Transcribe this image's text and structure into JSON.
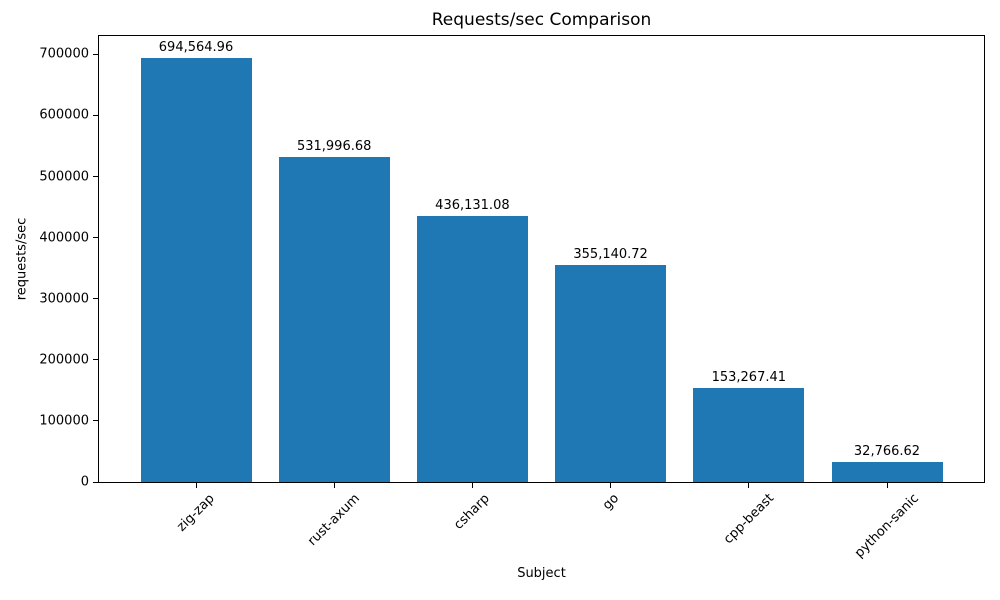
{
  "chart_data": {
    "type": "bar",
    "title": "Requests/sec Comparison",
    "xlabel": "Subject",
    "ylabel": "requests/sec",
    "categories": [
      "zig-zap",
      "rust-axum",
      "csharp",
      "go",
      "cpp-beast",
      "python-sanic"
    ],
    "values": [
      694564.96,
      531996.68,
      436131.08,
      355140.72,
      153267.41,
      32766.62
    ],
    "value_labels": [
      "694,564.96",
      "531,996.68",
      "436,131.08",
      "355,140.72",
      "153,267.41",
      "32,766.62"
    ],
    "yticks": [
      0,
      100000,
      200000,
      300000,
      400000,
      500000,
      600000,
      700000
    ],
    "ytick_labels": [
      "0",
      "100000",
      "200000",
      "300000",
      "400000",
      "500000",
      "600000",
      "700000"
    ],
    "ylim": [
      0,
      730000
    ],
    "bar_color": "#1f77b4",
    "text_color": "#000000",
    "grid": false,
    "legend": "none",
    "x_tick_rotation_deg": 45
  }
}
